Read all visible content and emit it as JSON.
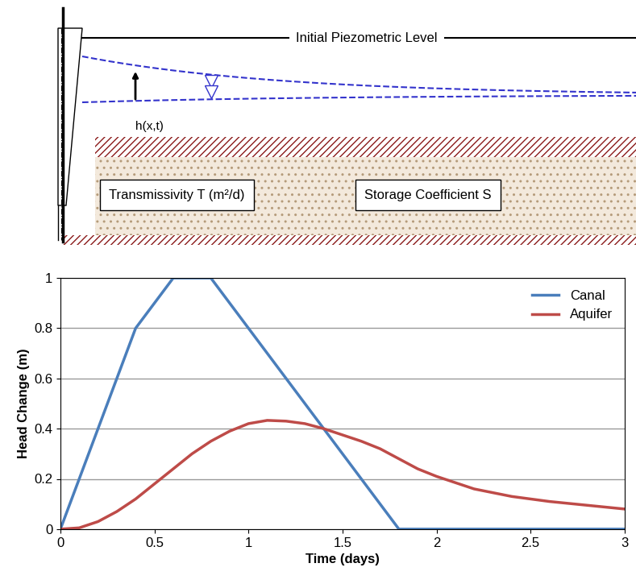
{
  "diagram": {
    "initial_level": "Initial Piezometric Level",
    "head": "h(x,t)",
    "transmissivity": "Transmissivity T (m²/d)",
    "storage": "Storage Coefficient S"
  },
  "chart_data": {
    "type": "line",
    "x_label": "Time (days)",
    "y_label": "Head Change (m)",
    "series": [
      {
        "name": "Canal",
        "color": "#4a7ebb",
        "x": [
          0,
          0.4,
          0.6,
          0.8,
          1.8,
          3
        ],
        "values": [
          0,
          0.8,
          1,
          1,
          0,
          0
        ]
      },
      {
        "name": "Aquifer",
        "color": "#be4b48",
        "x": [
          0,
          0.1,
          0.2,
          0.3,
          0.4,
          0.5,
          0.6,
          0.7,
          0.8,
          0.9,
          1,
          1.1,
          1.2,
          1.3,
          1.4,
          1.5,
          1.6,
          1.7,
          1.8,
          1.9,
          2,
          2.2,
          2.4,
          2.6,
          2.8,
          3
        ],
        "values": [
          0,
          0.005,
          0.03,
          0.07,
          0.12,
          0.18,
          0.24,
          0.3,
          0.35,
          0.39,
          0.42,
          0.433,
          0.43,
          0.42,
          0.4,
          0.375,
          0.35,
          0.32,
          0.28,
          0.24,
          0.21,
          0.16,
          0.13,
          0.11,
          0.095,
          0.08
        ]
      }
    ],
    "xlim": [
      0,
      3
    ],
    "xticks": [
      0,
      0.5,
      1,
      1.5,
      2,
      2.5,
      3
    ],
    "ylim": [
      0,
      1
    ],
    "yticks": [
      0,
      0.2,
      0.4,
      0.6,
      0.8,
      1
    ],
    "grid": "y",
    "legend": "upper right"
  }
}
